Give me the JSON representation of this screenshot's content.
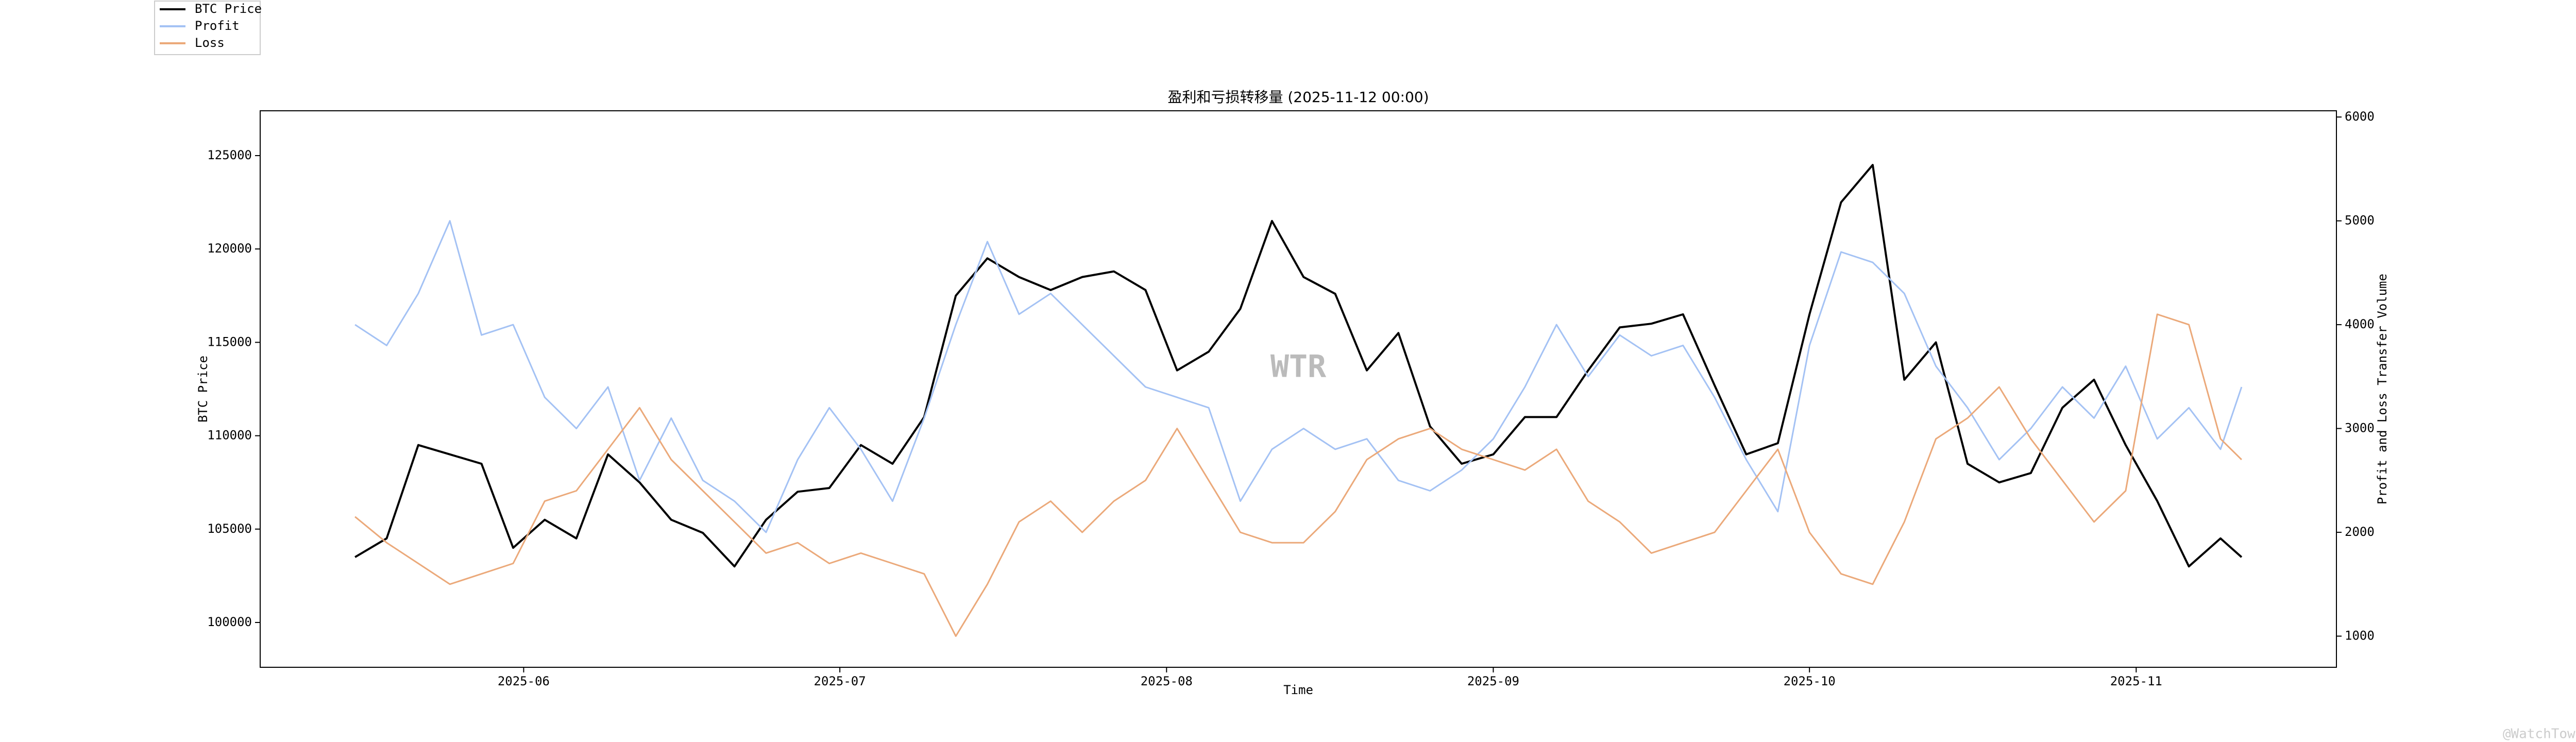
{
  "chart_data": {
    "type": "line",
    "title": "盈利和亏损转移量 (2025-11-12 00:00)",
    "xlabel": "Time",
    "ylabel": "BTC Price",
    "y2label": "Profit and Loss Transfer Volume",
    "watermark": "WTR",
    "credit": "@WatchTower",
    "x": [
      "2025-05-16",
      "2025-05-19",
      "2025-05-22",
      "2025-05-25",
      "2025-05-28",
      "2025-05-31",
      "2025-06-03",
      "2025-06-06",
      "2025-06-09",
      "2025-06-12",
      "2025-06-15",
      "2025-06-18",
      "2025-06-21",
      "2025-06-24",
      "2025-06-27",
      "2025-06-30",
      "2025-07-03",
      "2025-07-06",
      "2025-07-09",
      "2025-07-12",
      "2025-07-15",
      "2025-07-18",
      "2025-07-21",
      "2025-07-24",
      "2025-07-27",
      "2025-07-30",
      "2025-08-02",
      "2025-08-05",
      "2025-08-08",
      "2025-08-11",
      "2025-08-14",
      "2025-08-17",
      "2025-08-20",
      "2025-08-23",
      "2025-08-26",
      "2025-08-29",
      "2025-09-01",
      "2025-09-04",
      "2025-09-07",
      "2025-09-10",
      "2025-09-13",
      "2025-09-16",
      "2025-09-19",
      "2025-09-22",
      "2025-09-25",
      "2025-09-28",
      "2025-10-01",
      "2025-10-04",
      "2025-10-07",
      "2025-10-10",
      "2025-10-13",
      "2025-10-16",
      "2025-10-19",
      "2025-10-22",
      "2025-10-25",
      "2025-10-28",
      "2025-10-31",
      "2025-11-03",
      "2025-11-06",
      "2025-11-09",
      "2025-11-11"
    ],
    "series": [
      {
        "name": "BTC Price",
        "color": "#000000",
        "axis": "y",
        "values": [
          103500,
          104500,
          109500,
          109000,
          108500,
          104000,
          105500,
          104500,
          109000,
          107500,
          105500,
          104800,
          103000,
          105500,
          107000,
          107200,
          109500,
          108500,
          111000,
          117500,
          119500,
          118500,
          117800,
          118500,
          118800,
          117800,
          113500,
          114500,
          116800,
          121500,
          118500,
          117600,
          113500,
          115500,
          110500,
          108500,
          109000,
          111000,
          111000,
          113500,
          115800,
          116000,
          116500,
          112700,
          109000,
          109600,
          116500,
          122500,
          124500,
          113000,
          115000,
          108500,
          107500,
          108000,
          111500,
          113000,
          109500,
          106500,
          103000,
          104500,
          103500
        ]
      },
      {
        "name": "Profit",
        "color": "#a4c2f4",
        "axis": "y2",
        "values": [
          4000,
          3800,
          4300,
          5000,
          3900,
          4000,
          3300,
          3000,
          3400,
          2500,
          3100,
          2500,
          2300,
          2000,
          2700,
          3200,
          2800,
          2300,
          3100,
          4000,
          4800,
          4100,
          4300,
          4000,
          3700,
          3400,
          3300,
          3200,
          2300,
          2800,
          3000,
          2800,
          2900,
          2500,
          2400,
          2600,
          2900,
          3400,
          4000,
          3500,
          3900,
          3700,
          3800,
          3300,
          2700,
          2200,
          3800,
          4700,
          4600,
          4300,
          3600,
          3200,
          2700,
          3000,
          3400,
          3100,
          3600,
          2900,
          3200,
          2800,
          3400
        ]
      },
      {
        "name": "Loss",
        "color": "#eba97a",
        "axis": "y2",
        "values": [
          2150,
          1900,
          1700,
          1500,
          1600,
          1700,
          2300,
          2400,
          2800,
          3200,
          2700,
          2400,
          2100,
          1800,
          1900,
          1700,
          1800,
          1700,
          1600,
          1000,
          1500,
          2100,
          2300,
          2000,
          2300,
          2500,
          3000,
          2500,
          2000,
          1900,
          1900,
          2200,
          2700,
          2900,
          3000,
          2800,
          2700,
          2600,
          2800,
          2300,
          2100,
          1800,
          1900,
          2000,
          2400,
          2800,
          2000,
          1600,
          1500,
          2100,
          2900,
          3100,
          3400,
          2900,
          2500,
          2100,
          2400,
          4100,
          4000,
          2900,
          2700
        ]
      }
    ],
    "xlim": [
      "2025-05-07",
      "2025-11-20"
    ],
    "xticks": [
      {
        "value": "2025-06-01",
        "label": "2025-06"
      },
      {
        "value": "2025-07-01",
        "label": "2025-07"
      },
      {
        "value": "2025-08-01",
        "label": "2025-08"
      },
      {
        "value": "2025-09-01",
        "label": "2025-09"
      },
      {
        "value": "2025-10-01",
        "label": "2025-10"
      },
      {
        "value": "2025-11-01",
        "label": "2025-11"
      }
    ],
    "ylim": [
      97600,
      127400
    ],
    "yticks": [
      100000,
      105000,
      110000,
      115000,
      120000,
      125000
    ],
    "y2lim": [
      700,
      6060
    ],
    "y2ticks": [
      1000,
      2000,
      3000,
      4000,
      5000,
      6000
    ]
  }
}
